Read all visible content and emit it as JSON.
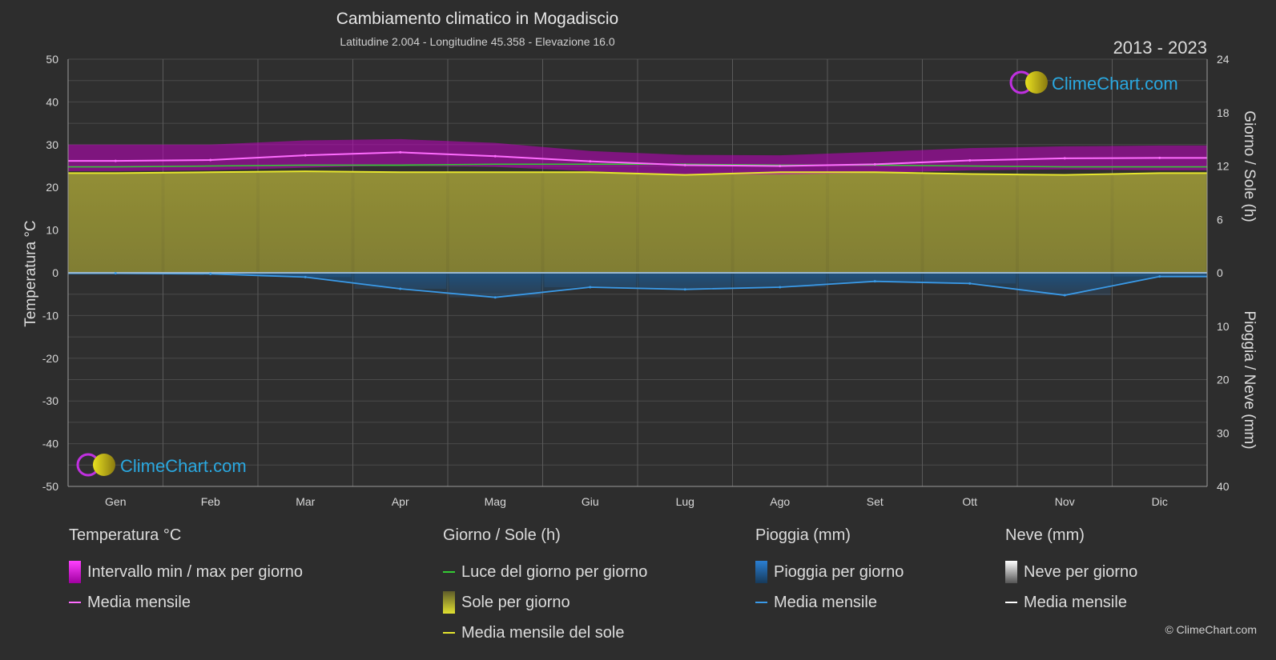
{
  "chart_data": {
    "type": "area",
    "title": "Cambiamento climatico in Mogadiscio",
    "subtitle": "Latitudine 2.004 - Longitudine 45.358 - Elevazione 16.0",
    "period": "2013 - 2023",
    "brand": "ClimeChart.com",
    "copyright": "© ClimeChart.com",
    "categories": [
      "Gen",
      "Feb",
      "Mar",
      "Apr",
      "Mag",
      "Giu",
      "Lug",
      "Ago",
      "Set",
      "Ott",
      "Nov",
      "Dic"
    ],
    "y_left": {
      "label": "Temperatura °C",
      "ylim": [
        -50,
        50
      ],
      "ticks": [
        50,
        40,
        30,
        20,
        10,
        0,
        -10,
        -20,
        -30,
        -40,
        -50
      ]
    },
    "y_right_top": {
      "label": "Giorno / Sole (h)",
      "ylim": [
        0,
        24
      ],
      "ticks": [
        24,
        18,
        12,
        6,
        0
      ]
    },
    "y_right_bottom": {
      "label": "Pioggia / Neve (mm)",
      "ylim": [
        0,
        40
      ],
      "ticks": [
        10,
        20,
        30,
        40
      ]
    },
    "grid": true,
    "series": [
      {
        "name": "Intervallo min / max per giorno",
        "unit": "°C",
        "min": [
          23.8,
          24.0,
          24.6,
          25.2,
          24.8,
          23.8,
          23.0,
          23.0,
          23.4,
          24.0,
          24.2,
          24.0
        ],
        "max": [
          30.0,
          30.0,
          31.0,
          31.3,
          30.4,
          28.5,
          27.6,
          27.5,
          28.3,
          29.2,
          29.6,
          29.8
        ],
        "color": "#d400d4"
      },
      {
        "name": "Media mensile",
        "group": "temperature",
        "unit": "°C",
        "values": [
          26.2,
          26.4,
          27.5,
          28.2,
          27.3,
          26.1,
          25.2,
          25.0,
          25.4,
          26.3,
          26.8,
          26.9
        ],
        "color": "#ff6cff"
      },
      {
        "name": "Luce del giorno per giorno",
        "unit": "h",
        "values": [
          11.9,
          12.0,
          12.1,
          12.1,
          12.2,
          12.2,
          12.2,
          12.1,
          12.1,
          12.0,
          11.9,
          11.9
        ],
        "color": "#33cc33"
      },
      {
        "name": "Sole per giorno",
        "unit": "h",
        "values": [
          11.2,
          11.3,
          11.4,
          11.3,
          11.3,
          11.3,
          11.0,
          11.3,
          11.3,
          11.1,
          11.0,
          11.2
        ],
        "color": "#c8c83a"
      },
      {
        "name": "Media mensile del sole",
        "unit": "h",
        "values": [
          11.2,
          11.3,
          11.4,
          11.3,
          11.3,
          11.3,
          11.0,
          11.3,
          11.3,
          11.1,
          11.0,
          11.2
        ],
        "color": "#e6e62e"
      },
      {
        "name": "Pioggia per giorno",
        "unit": "mm",
        "values": [
          0.1,
          0.2,
          0.8,
          3.0,
          4.6,
          2.7,
          3.1,
          2.7,
          1.6,
          2.0,
          4.2,
          0.7
        ],
        "color": "#2a7fd4"
      },
      {
        "name": "Media mensile",
        "group": "rain",
        "unit": "mm",
        "values": [
          0.1,
          0.2,
          0.8,
          3.0,
          4.6,
          2.7,
          3.1,
          2.7,
          1.6,
          2.0,
          4.2,
          0.7
        ],
        "color": "#3a9ae8"
      },
      {
        "name": "Neve per giorno",
        "unit": "mm",
        "values": [
          0,
          0,
          0,
          0,
          0,
          0,
          0,
          0,
          0,
          0,
          0,
          0
        ],
        "color": "#ffffff"
      },
      {
        "name": "Media mensile",
        "group": "snow",
        "unit": "mm",
        "values": [
          0,
          0,
          0,
          0,
          0,
          0,
          0,
          0,
          0,
          0,
          0,
          0
        ],
        "color": "#ffffff"
      }
    ]
  },
  "legend": {
    "temperature": {
      "header": "Temperatura °C",
      "items": [
        "Intervallo min / max per giorno",
        "Media mensile"
      ]
    },
    "sun": {
      "header": "Giorno / Sole (h)",
      "items": [
        "Luce del giorno per giorno",
        "Sole per giorno",
        "Media mensile del sole"
      ]
    },
    "rain": {
      "header": "Pioggia (mm)",
      "items": [
        "Pioggia per giorno",
        "Media mensile"
      ]
    },
    "snow": {
      "header": "Neve (mm)",
      "items": [
        "Neve per giorno",
        "Media mensile"
      ]
    }
  }
}
